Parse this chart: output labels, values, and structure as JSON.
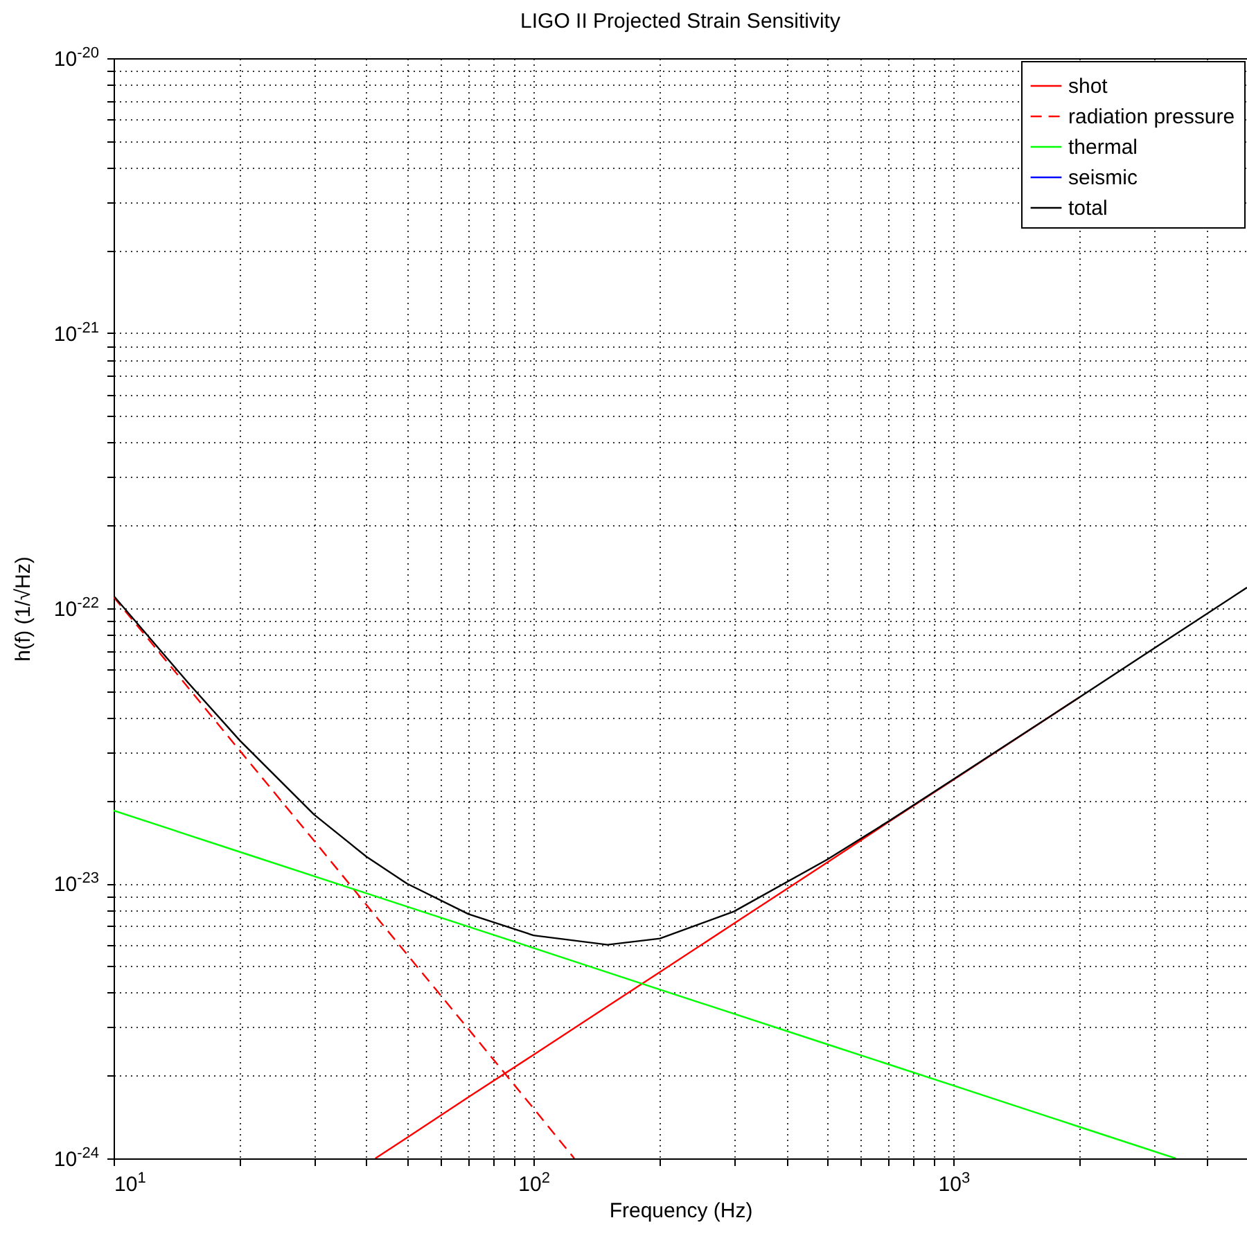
{
  "chart_data": {
    "type": "line",
    "title": "LIGO II Projected Strain Sensitivity",
    "xlabel": "Frequency (Hz)",
    "ylabel": "h(f) (1/√Hz)",
    "log": "xy",
    "grid": true,
    "legend": "top right",
    "xlim": [
      10,
      5000
    ],
    "ylim": [
      1e-24,
      1e-20
    ],
    "xticks": [
      {
        "value": 10,
        "label": "10$^{1}$"
      },
      {
        "value": 20,
        "label": null
      },
      {
        "value": 30,
        "label": null
      },
      {
        "value": 40,
        "label": null
      },
      {
        "value": 50,
        "label": null
      },
      {
        "value": 60,
        "label": null
      },
      {
        "value": 70,
        "label": null
      },
      {
        "value": 80,
        "label": null
      },
      {
        "value": 90,
        "label": null
      },
      {
        "value": 100,
        "label": "10$^{2}$"
      },
      {
        "value": 200,
        "label": null
      },
      {
        "value": 300,
        "label": null
      },
      {
        "value": 400,
        "label": null
      },
      {
        "value": 500,
        "label": null
      },
      {
        "value": 600,
        "label": null
      },
      {
        "value": 700,
        "label": null
      },
      {
        "value": 800,
        "label": null
      },
      {
        "value": 900,
        "label": null
      },
      {
        "value": 1000,
        "label": "10$^{3}$"
      },
      {
        "value": 2000,
        "label": null
      },
      {
        "value": 3000,
        "label": null
      },
      {
        "value": 4000,
        "label": null
      },
      {
        "value": 5000,
        "label": null
      }
    ],
    "yticks": [
      {
        "value": 1e-24,
        "label": "10$^{-24}$"
      },
      {
        "value": 2e-24,
        "label": null
      },
      {
        "value": 3e-24,
        "label": null
      },
      {
        "value": 4e-24,
        "label": null
      },
      {
        "value": 5e-24,
        "label": null
      },
      {
        "value": 6e-24,
        "label": null
      },
      {
        "value": 7e-24,
        "label": null
      },
      {
        "value": 8e-24,
        "label": null
      },
      {
        "value": 9e-24,
        "label": null
      },
      {
        "value": 1e-23,
        "label": "10$^{-23}$"
      },
      {
        "value": 2e-23,
        "label": null
      },
      {
        "value": 3e-23,
        "label": null
      },
      {
        "value": 4e-23,
        "label": null
      },
      {
        "value": 5e-23,
        "label": null
      },
      {
        "value": 6e-23,
        "label": null
      },
      {
        "value": 7e-23,
        "label": null
      },
      {
        "value": 8e-23,
        "label": null
      },
      {
        "value": 9e-23,
        "label": null
      },
      {
        "value": 1e-22,
        "label": "10$^{-22}$"
      },
      {
        "value": 2e-22,
        "label": null
      },
      {
        "value": 3e-22,
        "label": null
      },
      {
        "value": 4e-22,
        "label": null
      },
      {
        "value": 5e-22,
        "label": null
      },
      {
        "value": 6e-22,
        "label": null
      },
      {
        "value": 7e-22,
        "label": null
      },
      {
        "value": 8e-22,
        "label": null
      },
      {
        "value": 9e-22,
        "label": null
      },
      {
        "value": 1e-21,
        "label": "10$^{-21}$"
      },
      {
        "value": 2e-21,
        "label": null
      },
      {
        "value": 3e-21,
        "label": null
      },
      {
        "value": 4e-21,
        "label": null
      },
      {
        "value": 5e-21,
        "label": null
      },
      {
        "value": 6e-21,
        "label": null
      },
      {
        "value": 7e-21,
        "label": null
      },
      {
        "value": 8e-21,
        "label": null
      },
      {
        "value": 9e-21,
        "label": null
      },
      {
        "value": 1e-20,
        "label": "10$^{-20}$"
      }
    ],
    "series": [
      {
        "name": "shot",
        "color": "#ff0000",
        "line_style": "solid",
        "x": [
          42,
          50,
          70,
          100,
          150,
          200,
          300,
          500,
          700,
          1000,
          2000
        ],
        "values": [
          1e-24,
          1.19e-24,
          1.67e-24,
          2.38e-24,
          3.57e-24,
          4.76e-24,
          7.14e-24,
          1.19e-23,
          1.67e-23,
          2.38e-23,
          4.76e-23
        ]
      },
      {
        "name": "radiation pressure",
        "color": "#ff0000",
        "line_style": "dashed",
        "x": [
          10,
          15,
          20,
          30,
          40,
          50,
          70,
          100,
          125
        ],
        "values": [
          1.1e-22,
          5.18e-23,
          3.03e-23,
          1.43e-23,
          8.35e-24,
          5.51e-24,
          2.95e-24,
          1.52e-24,
          1e-24
        ]
      },
      {
        "name": "thermal",
        "color": "#00ff00",
        "line_style": "solid",
        "x": [
          10,
          20,
          50,
          100,
          200,
          500,
          1000,
          2000,
          3380
        ],
        "values": [
          1.84e-23,
          1.3e-23,
          8.23e-24,
          5.82e-24,
          4.11e-24,
          2.6e-24,
          1.84e-24,
          1.3e-24,
          1e-24
        ]
      },
      {
        "name": "seismic",
        "color": "#0000ff",
        "line_style": "solid"
      },
      {
        "name": "total",
        "color": "#000000",
        "line_style": "solid",
        "x": [
          10,
          15,
          20,
          30,
          40,
          50,
          70,
          100,
          150,
          200,
          300,
          500,
          700,
          1000,
          2000,
          3000,
          5000
        ],
        "values": [
          1.11e-22,
          5.39e-23,
          3.3e-23,
          1.78e-23,
          1.25e-23,
          9.97e-24,
          7.73e-24,
          6.47e-24,
          5.98e-24,
          6.3e-24,
          7.9e-24,
          1.22e-23,
          1.68e-23,
          2.39e-23,
          4.76e-23,
          7.14e-23,
          1.19e-22
        ]
      }
    ]
  }
}
